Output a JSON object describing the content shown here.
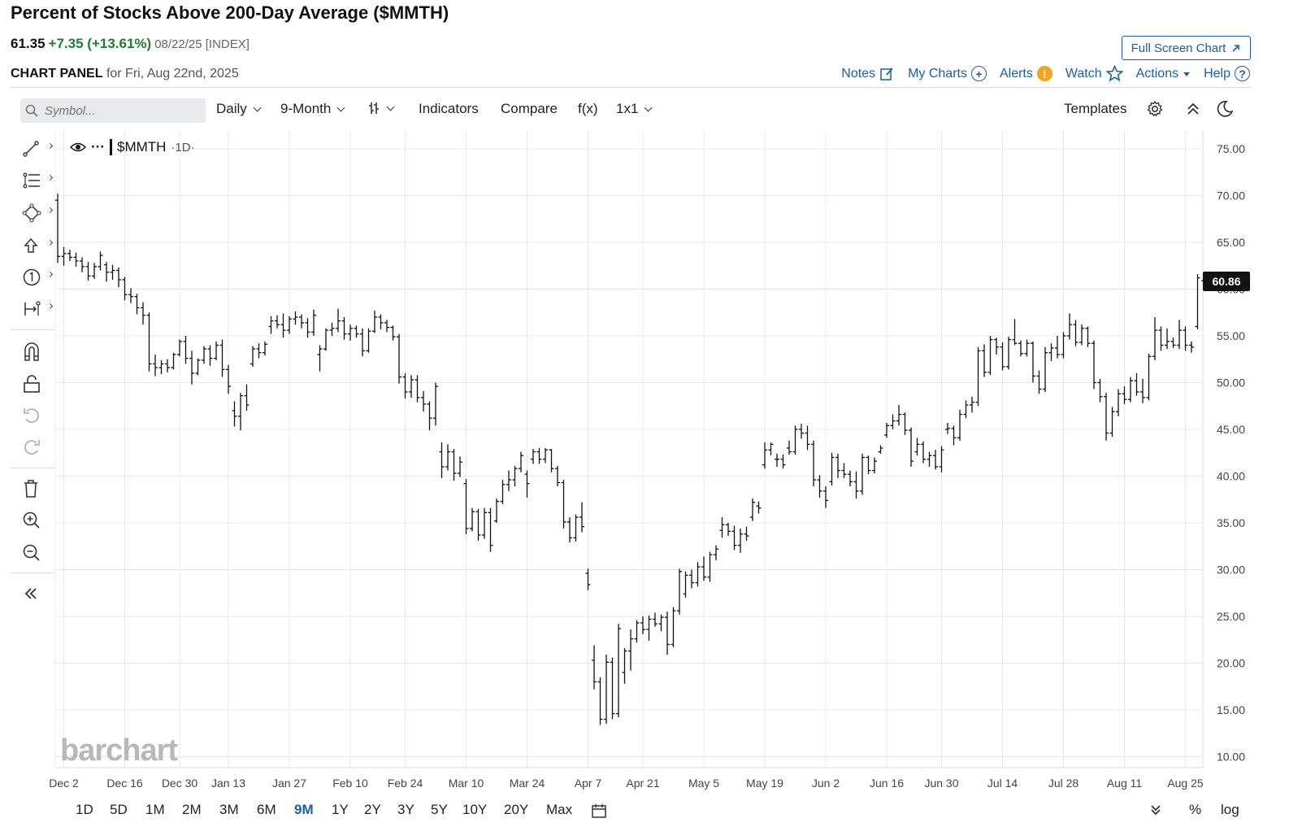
{
  "header": {
    "title": "Percent of Stocks Above 200-Day Average ($MMTH)",
    "last": "61.35",
    "change": "+7.35 (+13.61%)",
    "meta": "08/22/25 [INDEX]",
    "panel_label": "CHART PANEL",
    "panel_date": "for Fri, Aug 22nd, 2025",
    "fullscreen": "Full Screen Chart"
  },
  "links": {
    "notes": "Notes",
    "mycharts": "My Charts",
    "alerts": "Alerts",
    "watch": "Watch",
    "actions": "Actions",
    "help": "Help"
  },
  "toolbar": {
    "symbol_placeholder": "Symbol...",
    "interval": "Daily",
    "period": "9-Month",
    "indicators": "Indicators",
    "compare": "Compare",
    "fx": "f(x)",
    "layout": "1x1",
    "templates": "Templates"
  },
  "legend": {
    "symbol": "$MMTH",
    "timeframe": "·1D·"
  },
  "ranges": [
    "1D",
    "5D",
    "1M",
    "2M",
    "3M",
    "6M",
    "9M",
    "1Y",
    "2Y",
    "3Y",
    "5Y",
    "10Y",
    "20Y",
    "Max"
  ],
  "active_range": "9M",
  "bottom_right": {
    "percent": "%",
    "log": "log"
  },
  "watermark": "barchart",
  "colors": {
    "accent": "#1a5fa8",
    "up": "#1e7d32",
    "bars": "#111111"
  },
  "chart_data": {
    "type": "ohlc-bar",
    "ylim": [
      10,
      75
    ],
    "yticks": [
      "75.00",
      "70.00",
      "65.00",
      "60.00",
      "55.00",
      "50.00",
      "45.00",
      "40.00",
      "35.00",
      "30.00",
      "25.00",
      "20.00",
      "15.00",
      "10.00"
    ],
    "xticks": [
      {
        "label": "Dec 2",
        "i": 1
      },
      {
        "label": "Dec 16",
        "i": 11
      },
      {
        "label": "Dec 30",
        "i": 20
      },
      {
        "label": "Jan 13",
        "i": 28
      },
      {
        "label": "Jan 27",
        "i": 38
      },
      {
        "label": "Feb 10",
        "i": 48
      },
      {
        "label": "Feb 24",
        "i": 57
      },
      {
        "label": "Mar 10",
        "i": 67
      },
      {
        "label": "Mar 24",
        "i": 77
      },
      {
        "label": "Apr 7",
        "i": 87
      },
      {
        "label": "Apr 21",
        "i": 96
      },
      {
        "label": "May 5",
        "i": 106
      },
      {
        "label": "May 19",
        "i": 116
      },
      {
        "label": "Jun 2",
        "i": 126
      },
      {
        "label": "Jun 16",
        "i": 136
      },
      {
        "label": "Jun 30",
        "i": 145
      },
      {
        "label": "Jul 14",
        "i": 155
      },
      {
        "label": "Jul 28",
        "i": 165
      },
      {
        "label": "Aug 11",
        "i": 175
      },
      {
        "label": "Aug 25",
        "i": 185
      }
    ],
    "last_price_label": "60.86",
    "bars": [
      [
        69.5,
        70.2,
        62.8,
        63.5
      ],
      [
        63.5,
        64.5,
        62.5,
        63.8
      ],
      [
        63.8,
        64.2,
        63.0,
        63.4
      ],
      [
        63.4,
        63.9,
        62.4,
        63.0
      ],
      [
        63.0,
        63.4,
        61.8,
        62.4
      ],
      [
        62.4,
        62.9,
        60.9,
        61.4
      ],
      [
        61.4,
        62.8,
        61.1,
        62.4
      ],
      [
        62.4,
        64.0,
        62.0,
        63.6
      ],
      [
        62.6,
        62.9,
        60.8,
        61.8
      ],
      [
        61.8,
        62.6,
        61.0,
        62.0
      ],
      [
        62.0,
        62.3,
        60.2,
        61.0
      ],
      [
        61.0,
        61.3,
        58.8,
        59.4
      ],
      [
        59.4,
        60.1,
        58.5,
        59.2
      ],
      [
        59.2,
        59.5,
        57.3,
        58.0
      ],
      [
        58.0,
        58.6,
        56.2,
        57.2
      ],
      [
        57.2,
        57.5,
        51.2,
        52.0
      ],
      [
        52.0,
        53.0,
        50.7,
        51.6
      ],
      [
        51.6,
        52.4,
        50.9,
        52.0
      ],
      [
        52.0,
        52.5,
        51.1,
        51.6
      ],
      [
        51.6,
        53.2,
        51.4,
        53.0
      ],
      [
        53.0,
        54.6,
        52.8,
        54.4
      ],
      [
        54.4,
        55.0,
        52.0,
        52.6
      ],
      [
        52.6,
        53.4,
        49.8,
        51.0
      ],
      [
        51.0,
        52.6,
        50.8,
        52.4
      ],
      [
        52.4,
        53.9,
        52.0,
        53.6
      ],
      [
        53.6,
        54.0,
        51.8,
        52.6
      ],
      [
        52.6,
        54.4,
        52.4,
        54.0
      ],
      [
        54.0,
        54.6,
        50.6,
        51.4
      ],
      [
        51.4,
        51.9,
        48.8,
        49.6
      ],
      [
        47.0,
        48.0,
        45.3,
        46.4
      ],
      [
        46.4,
        48.9,
        44.9,
        48.6
      ],
      [
        48.6,
        49.8,
        47.0,
        47.6
      ],
      [
        52.0,
        53.9,
        51.7,
        53.6
      ],
      [
        53.6,
        54.2,
        52.6,
        53.2
      ],
      [
        53.2,
        54.4,
        52.9,
        54.1
      ],
      [
        56.0,
        57.1,
        55.2,
        56.6
      ],
      [
        56.6,
        57.2,
        55.8,
        56.2
      ],
      [
        56.2,
        57.4,
        54.8,
        55.6
      ],
      [
        55.6,
        57.1,
        55.2,
        56.8
      ],
      [
        56.8,
        57.6,
        56.2,
        57.0
      ],
      [
        57.0,
        57.3,
        55.8,
        56.4
      ],
      [
        56.4,
        56.9,
        54.8,
        55.4
      ],
      [
        55.4,
        57.8,
        55.0,
        57.2
      ],
      [
        53.0,
        54.0,
        51.2,
        53.6
      ],
      [
        53.6,
        55.8,
        53.4,
        55.6
      ],
      [
        55.6,
        56.4,
        55.0,
        55.8
      ],
      [
        55.8,
        57.9,
        55.4,
        56.6
      ],
      [
        56.6,
        57.0,
        54.6,
        55.2
      ],
      [
        55.2,
        56.2,
        54.5,
        55.8
      ],
      [
        55.8,
        56.1,
        54.8,
        55.2
      ],
      [
        55.2,
        55.8,
        52.8,
        53.4
      ],
      [
        53.4,
        55.8,
        53.2,
        55.5
      ],
      [
        55.5,
        57.7,
        55.3,
        57.0
      ],
      [
        57.0,
        57.3,
        55.7,
        56.4
      ],
      [
        56.4,
        56.7,
        55.4,
        55.9
      ],
      [
        55.9,
        56.1,
        54.5,
        54.9
      ],
      [
        54.9,
        55.2,
        49.9,
        50.6
      ],
      [
        50.6,
        51.0,
        48.3,
        49.0
      ],
      [
        49.0,
        50.8,
        48.4,
        50.3
      ],
      [
        50.3,
        50.8,
        47.9,
        48.4
      ],
      [
        48.4,
        49.1,
        46.9,
        47.7
      ],
      [
        47.7,
        48.0,
        44.9,
        46.2
      ],
      [
        46.2,
        50.0,
        45.4,
        49.6
      ],
      [
        42.6,
        43.6,
        39.8,
        41.0
      ],
      [
        41.0,
        43.4,
        40.6,
        42.6
      ],
      [
        42.6,
        42.9,
        39.5,
        40.3
      ],
      [
        40.3,
        42.1,
        39.9,
        41.5
      ],
      [
        39.2,
        39.7,
        33.8,
        34.4
      ],
      [
        34.4,
        36.6,
        34.1,
        36.2
      ],
      [
        36.2,
        36.5,
        33.1,
        33.7
      ],
      [
        33.7,
        36.6,
        33.3,
        36.1
      ],
      [
        36.1,
        36.6,
        31.9,
        32.6
      ],
      [
        35.2,
        37.6,
        35.0,
        37.3
      ],
      [
        37.3,
        39.6,
        37.0,
        39.1
      ],
      [
        39.1,
        40.6,
        38.4,
        39.6
      ],
      [
        39.6,
        41.1,
        38.9,
        40.8
      ],
      [
        40.8,
        42.6,
        40.4,
        42.2
      ],
      [
        40.2,
        40.6,
        37.7,
        39.2
      ],
      [
        41.8,
        42.9,
        41.3,
        42.6
      ],
      [
        42.6,
        43.0,
        41.3,
        41.8
      ],
      [
        41.8,
        43.0,
        41.4,
        42.8
      ],
      [
        42.8,
        42.9,
        40.4,
        40.8
      ],
      [
        40.8,
        41.1,
        38.9,
        39.3
      ],
      [
        39.3,
        39.6,
        34.4,
        35.1
      ],
      [
        35.1,
        35.6,
        32.9,
        33.4
      ],
      [
        33.4,
        35.9,
        33.0,
        35.6
      ],
      [
        35.6,
        37.2,
        34.0,
        34.6
      ],
      [
        29.6,
        30.1,
        27.8,
        28.4
      ],
      [
        20.3,
        21.9,
        17.2,
        18.0
      ],
      [
        18.0,
        18.5,
        13.4,
        14.0
      ],
      [
        14.0,
        20.9,
        13.5,
        20.1
      ],
      [
        20.1,
        20.6,
        14.0,
        14.6
      ],
      [
        14.6,
        24.2,
        14.2,
        23.7
      ],
      [
        19.0,
        21.6,
        17.8,
        21.3
      ],
      [
        21.3,
        23.6,
        19.2,
        22.6
      ],
      [
        22.6,
        24.6,
        22.2,
        24.3
      ],
      [
        24.3,
        25.0,
        23.1,
        23.6
      ],
      [
        23.6,
        25.1,
        22.4,
        24.7
      ],
      [
        24.7,
        25.4,
        23.9,
        24.2
      ],
      [
        24.2,
        25.2,
        23.4,
        24.9
      ],
      [
        24.9,
        25.5,
        20.9,
        22.0
      ],
      [
        22.0,
        26.0,
        21.7,
        25.6
      ],
      [
        25.6,
        30.1,
        25.2,
        29.8
      ],
      [
        27.4,
        29.8,
        27.0,
        29.4
      ],
      [
        29.4,
        30.0,
        28.0,
        28.6
      ],
      [
        28.6,
        30.8,
        28.2,
        30.3
      ],
      [
        30.3,
        31.4,
        28.8,
        29.2
      ],
      [
        29.2,
        31.9,
        28.7,
        31.6
      ],
      [
        31.6,
        32.6,
        31.0,
        32.2
      ],
      [
        34.2,
        35.6,
        33.4,
        34.8
      ],
      [
        34.8,
        35.0,
        33.6,
        34.1
      ],
      [
        34.1,
        34.7,
        32.1,
        32.6
      ],
      [
        32.6,
        34.4,
        31.8,
        33.8
      ],
      [
        33.8,
        34.6,
        33.1,
        33.6
      ],
      [
        35.6,
        37.6,
        35.2,
        37.2
      ],
      [
        36.8,
        37.3,
        36.0,
        36.6
      ],
      [
        41.2,
        43.6,
        40.8,
        42.8
      ],
      [
        42.8,
        43.6,
        42.2,
        43.4
      ],
      [
        41.8,
        42.4,
        41.0,
        41.8
      ],
      [
        41.8,
        42.3,
        40.8,
        41.2
      ],
      [
        43.0,
        43.8,
        42.3,
        42.6
      ],
      [
        42.6,
        45.4,
        42.3,
        45.0
      ],
      [
        45.0,
        45.6,
        44.0,
        44.6
      ],
      [
        44.6,
        45.4,
        42.8,
        43.4
      ],
      [
        43.4,
        43.8,
        38.9,
        39.6
      ],
      [
        39.6,
        40.1,
        37.7,
        38.4
      ],
      [
        38.4,
        38.9,
        36.6,
        37.4
      ],
      [
        39.4,
        42.5,
        39.0,
        42.0
      ],
      [
        42.0,
        42.4,
        39.8,
        40.6
      ],
      [
        40.6,
        41.4,
        39.8,
        40.2
      ],
      [
        40.2,
        40.6,
        38.9,
        39.4
      ],
      [
        39.4,
        40.5,
        37.6,
        38.4
      ],
      [
        38.4,
        42.4,
        38.0,
        42.0
      ],
      [
        42.0,
        42.2,
        40.2,
        40.6
      ],
      [
        40.6,
        42.0,
        40.3,
        41.6
      ],
      [
        42.6,
        43.3,
        42.4,
        43.0
      ],
      [
        44.4,
        45.7,
        44.1,
        45.4
      ],
      [
        45.4,
        46.6,
        45.0,
        45.9
      ],
      [
        45.9,
        47.6,
        45.4,
        46.6
      ],
      [
        46.6,
        46.8,
        44.4,
        44.9
      ],
      [
        44.9,
        45.2,
        41.0,
        41.6
      ],
      [
        42.6,
        44.1,
        42.2,
        43.4
      ],
      [
        43.4,
        43.7,
        41.4,
        41.8
      ],
      [
        41.8,
        42.6,
        41.0,
        42.2
      ],
      [
        42.2,
        42.8,
        40.7,
        41.0
      ],
      [
        41.0,
        43.2,
        40.4,
        42.8
      ],
      [
        45.0,
        45.7,
        44.5,
        45.1
      ],
      [
        45.1,
        45.4,
        43.3,
        44.1
      ],
      [
        44.1,
        47.1,
        43.8,
        46.6
      ],
      [
        46.6,
        48.1,
        46.2,
        47.6
      ],
      [
        47.6,
        48.5,
        46.8,
        47.9
      ],
      [
        47.9,
        53.8,
        47.5,
        53.4
      ],
      [
        53.4,
        54.1,
        50.6,
        51.1
      ],
      [
        51.1,
        55.0,
        50.8,
        54.6
      ],
      [
        54.6,
        54.8,
        53.0,
        53.8
      ],
      [
        53.8,
        54.3,
        51.3,
        51.7
      ],
      [
        51.7,
        54.9,
        51.4,
        54.6
      ],
      [
        54.6,
        56.8,
        54.0,
        54.2
      ],
      [
        54.2,
        54.5,
        52.8,
        53.1
      ],
      [
        53.1,
        54.6,
        52.8,
        54.2
      ],
      [
        54.2,
        54.4,
        50.0,
        50.7
      ],
      [
        50.7,
        51.3,
        48.8,
        49.3
      ],
      [
        49.3,
        53.8,
        49.0,
        53.2
      ],
      [
        53.2,
        54.2,
        52.3,
        53.7
      ],
      [
        53.7,
        55.0,
        52.6,
        53.0
      ],
      [
        53.0,
        55.4,
        52.6,
        55.0
      ],
      [
        55.0,
        57.4,
        54.6,
        56.2
      ],
      [
        56.2,
        56.7,
        53.9,
        54.3
      ],
      [
        54.3,
        56.2,
        54.0,
        55.8
      ],
      [
        55.8,
        56.0,
        53.8,
        54.2
      ],
      [
        54.2,
        54.5,
        49.3,
        50.0
      ],
      [
        50.0,
        50.4,
        47.9,
        48.5
      ],
      [
        48.5,
        48.9,
        43.8,
        44.6
      ],
      [
        44.6,
        47.4,
        44.2,
        46.9
      ],
      [
        46.9,
        49.3,
        46.4,
        48.8
      ],
      [
        48.8,
        49.6,
        47.7,
        48.2
      ],
      [
        48.2,
        50.6,
        47.9,
        50.2
      ],
      [
        50.2,
        51.0,
        48.6,
        49.0
      ],
      [
        49.0,
        50.4,
        47.8,
        48.4
      ],
      [
        48.4,
        53.1,
        48.1,
        52.8
      ],
      [
        52.8,
        57.0,
        52.4,
        55.6
      ],
      [
        55.6,
        56.0,
        53.4,
        54.0
      ],
      [
        54.0,
        55.8,
        53.6,
        54.4
      ],
      [
        54.4,
        54.8,
        53.7,
        54.0
      ],
      [
        54.0,
        56.7,
        53.6,
        55.6
      ],
      [
        55.6,
        56.0,
        53.4,
        54.0
      ],
      [
        54.0,
        54.4,
        53.2,
        53.8
      ],
      [
        56.0,
        61.6,
        55.7,
        61.2
      ],
      [
        60.9,
        61.0,
        60.7,
        60.86
      ]
    ]
  }
}
